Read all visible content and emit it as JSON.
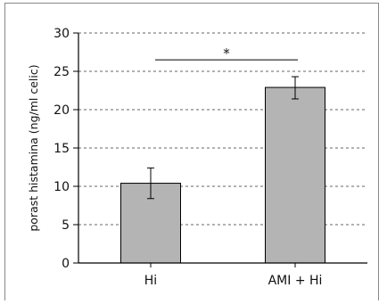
{
  "chart_data": {
    "type": "bar",
    "title": "",
    "xlabel": "",
    "ylabel": "porast histamina (ng/ml celic)",
    "ylim": [
      0,
      30
    ],
    "yticks": [
      0,
      5,
      10,
      15,
      20,
      25,
      30
    ],
    "grid": "horizontal-dashed",
    "legend": "none",
    "categories": [
      "Hi",
      "AMI + Hi"
    ],
    "values": [
      10.4,
      22.9
    ],
    "error_low": [
      8.4,
      21.4
    ],
    "error_high": [
      12.4,
      24.3
    ],
    "bar_color": "#b4b4b4",
    "significance": {
      "label": "*",
      "between": [
        0,
        1
      ],
      "y": 26.5
    }
  }
}
